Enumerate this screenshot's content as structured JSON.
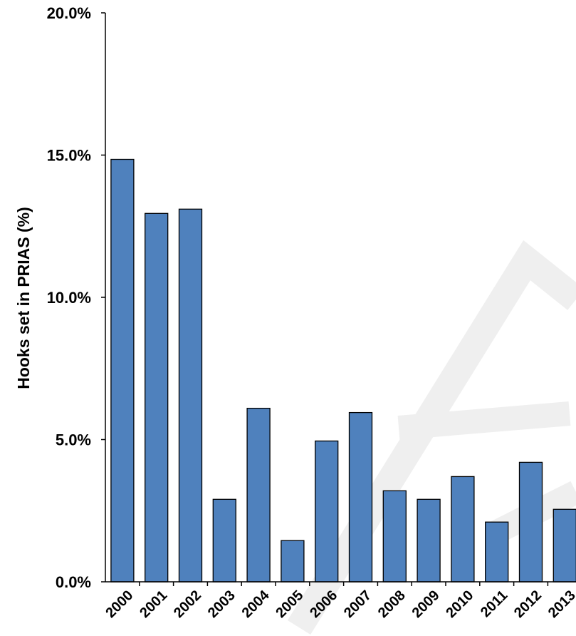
{
  "chart_data": {
    "type": "bar",
    "title": "",
    "xlabel": "",
    "ylabel": "Hooks set in PRIAS (%)",
    "categories": [
      "2000",
      "2001",
      "2002",
      "2003",
      "2004",
      "2005",
      "2006",
      "2007",
      "2008",
      "2009",
      "2010",
      "2011",
      "2012",
      "2013"
    ],
    "values": [
      14.85,
      12.95,
      13.1,
      2.9,
      6.1,
      1.45,
      4.95,
      5.95,
      3.2,
      2.9,
      3.7,
      2.1,
      4.2,
      2.55
    ],
    "ylim": [
      0,
      20
    ],
    "yticks": [
      0,
      5,
      10,
      15,
      20
    ],
    "ytick_labels": [
      "0.0%",
      "5.0%",
      "10.0%",
      "15.0%",
      "20.0%"
    ],
    "grid": false,
    "legend": "none",
    "bar_color": "#4f81bd",
    "bar_edge_color": "#000000",
    "watermark_color": "#efefef"
  }
}
